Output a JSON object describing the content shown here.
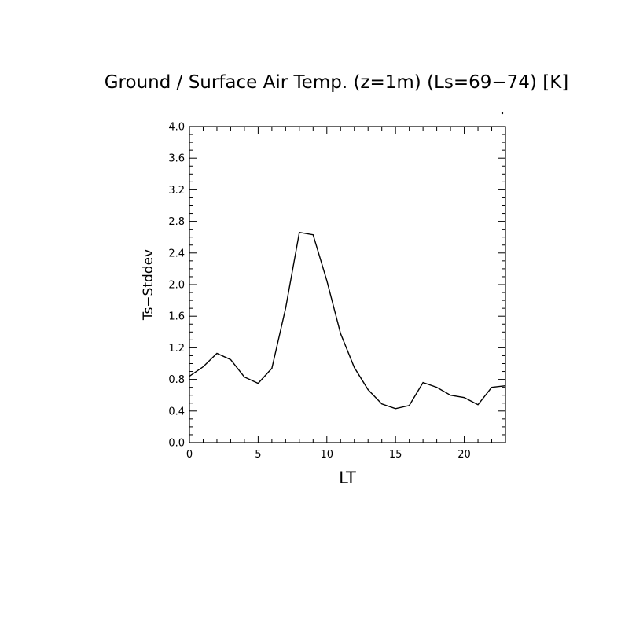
{
  "chart_data": {
    "type": "line",
    "title": "Ground / Surface Air Temp. (z=1m) (Ls=69−74) [K]",
    "xlabel": "LT",
    "ylabel": "Ts−Stddev",
    "xlim": [
      0,
      23
    ],
    "ylim": [
      0.0,
      4.0
    ],
    "xticks": [
      0,
      5,
      10,
      15,
      20
    ],
    "xtick_labels": [
      "0",
      "5",
      "10",
      "15",
      "20"
    ],
    "yticks": [
      0.0,
      0.4,
      0.8,
      1.2,
      1.6,
      2.0,
      2.4,
      2.8,
      3.2,
      3.6,
      4.0
    ],
    "ytick_labels": [
      "0.0",
      "0.4",
      "0.8",
      "1.2",
      "1.6",
      "2.0",
      "2.4",
      "2.8",
      "3.2",
      "3.6",
      "4.0"
    ],
    "grid": false,
    "series": [
      {
        "x": [
          0,
          1,
          2,
          3,
          4,
          5,
          6,
          7,
          8,
          9,
          10,
          11,
          12,
          13,
          14,
          15,
          16,
          17,
          18,
          19,
          20,
          21,
          22,
          23
        ],
        "values": [
          0.84,
          0.96,
          1.13,
          1.05,
          0.83,
          0.75,
          0.94,
          1.7,
          2.66,
          2.63,
          2.05,
          1.38,
          0.95,
          0.67,
          0.49,
          0.43,
          0.47,
          0.76,
          0.7,
          0.6,
          0.57,
          0.48,
          0.7,
          0.72
        ]
      }
    ],
    "line_color": "#000000"
  }
}
